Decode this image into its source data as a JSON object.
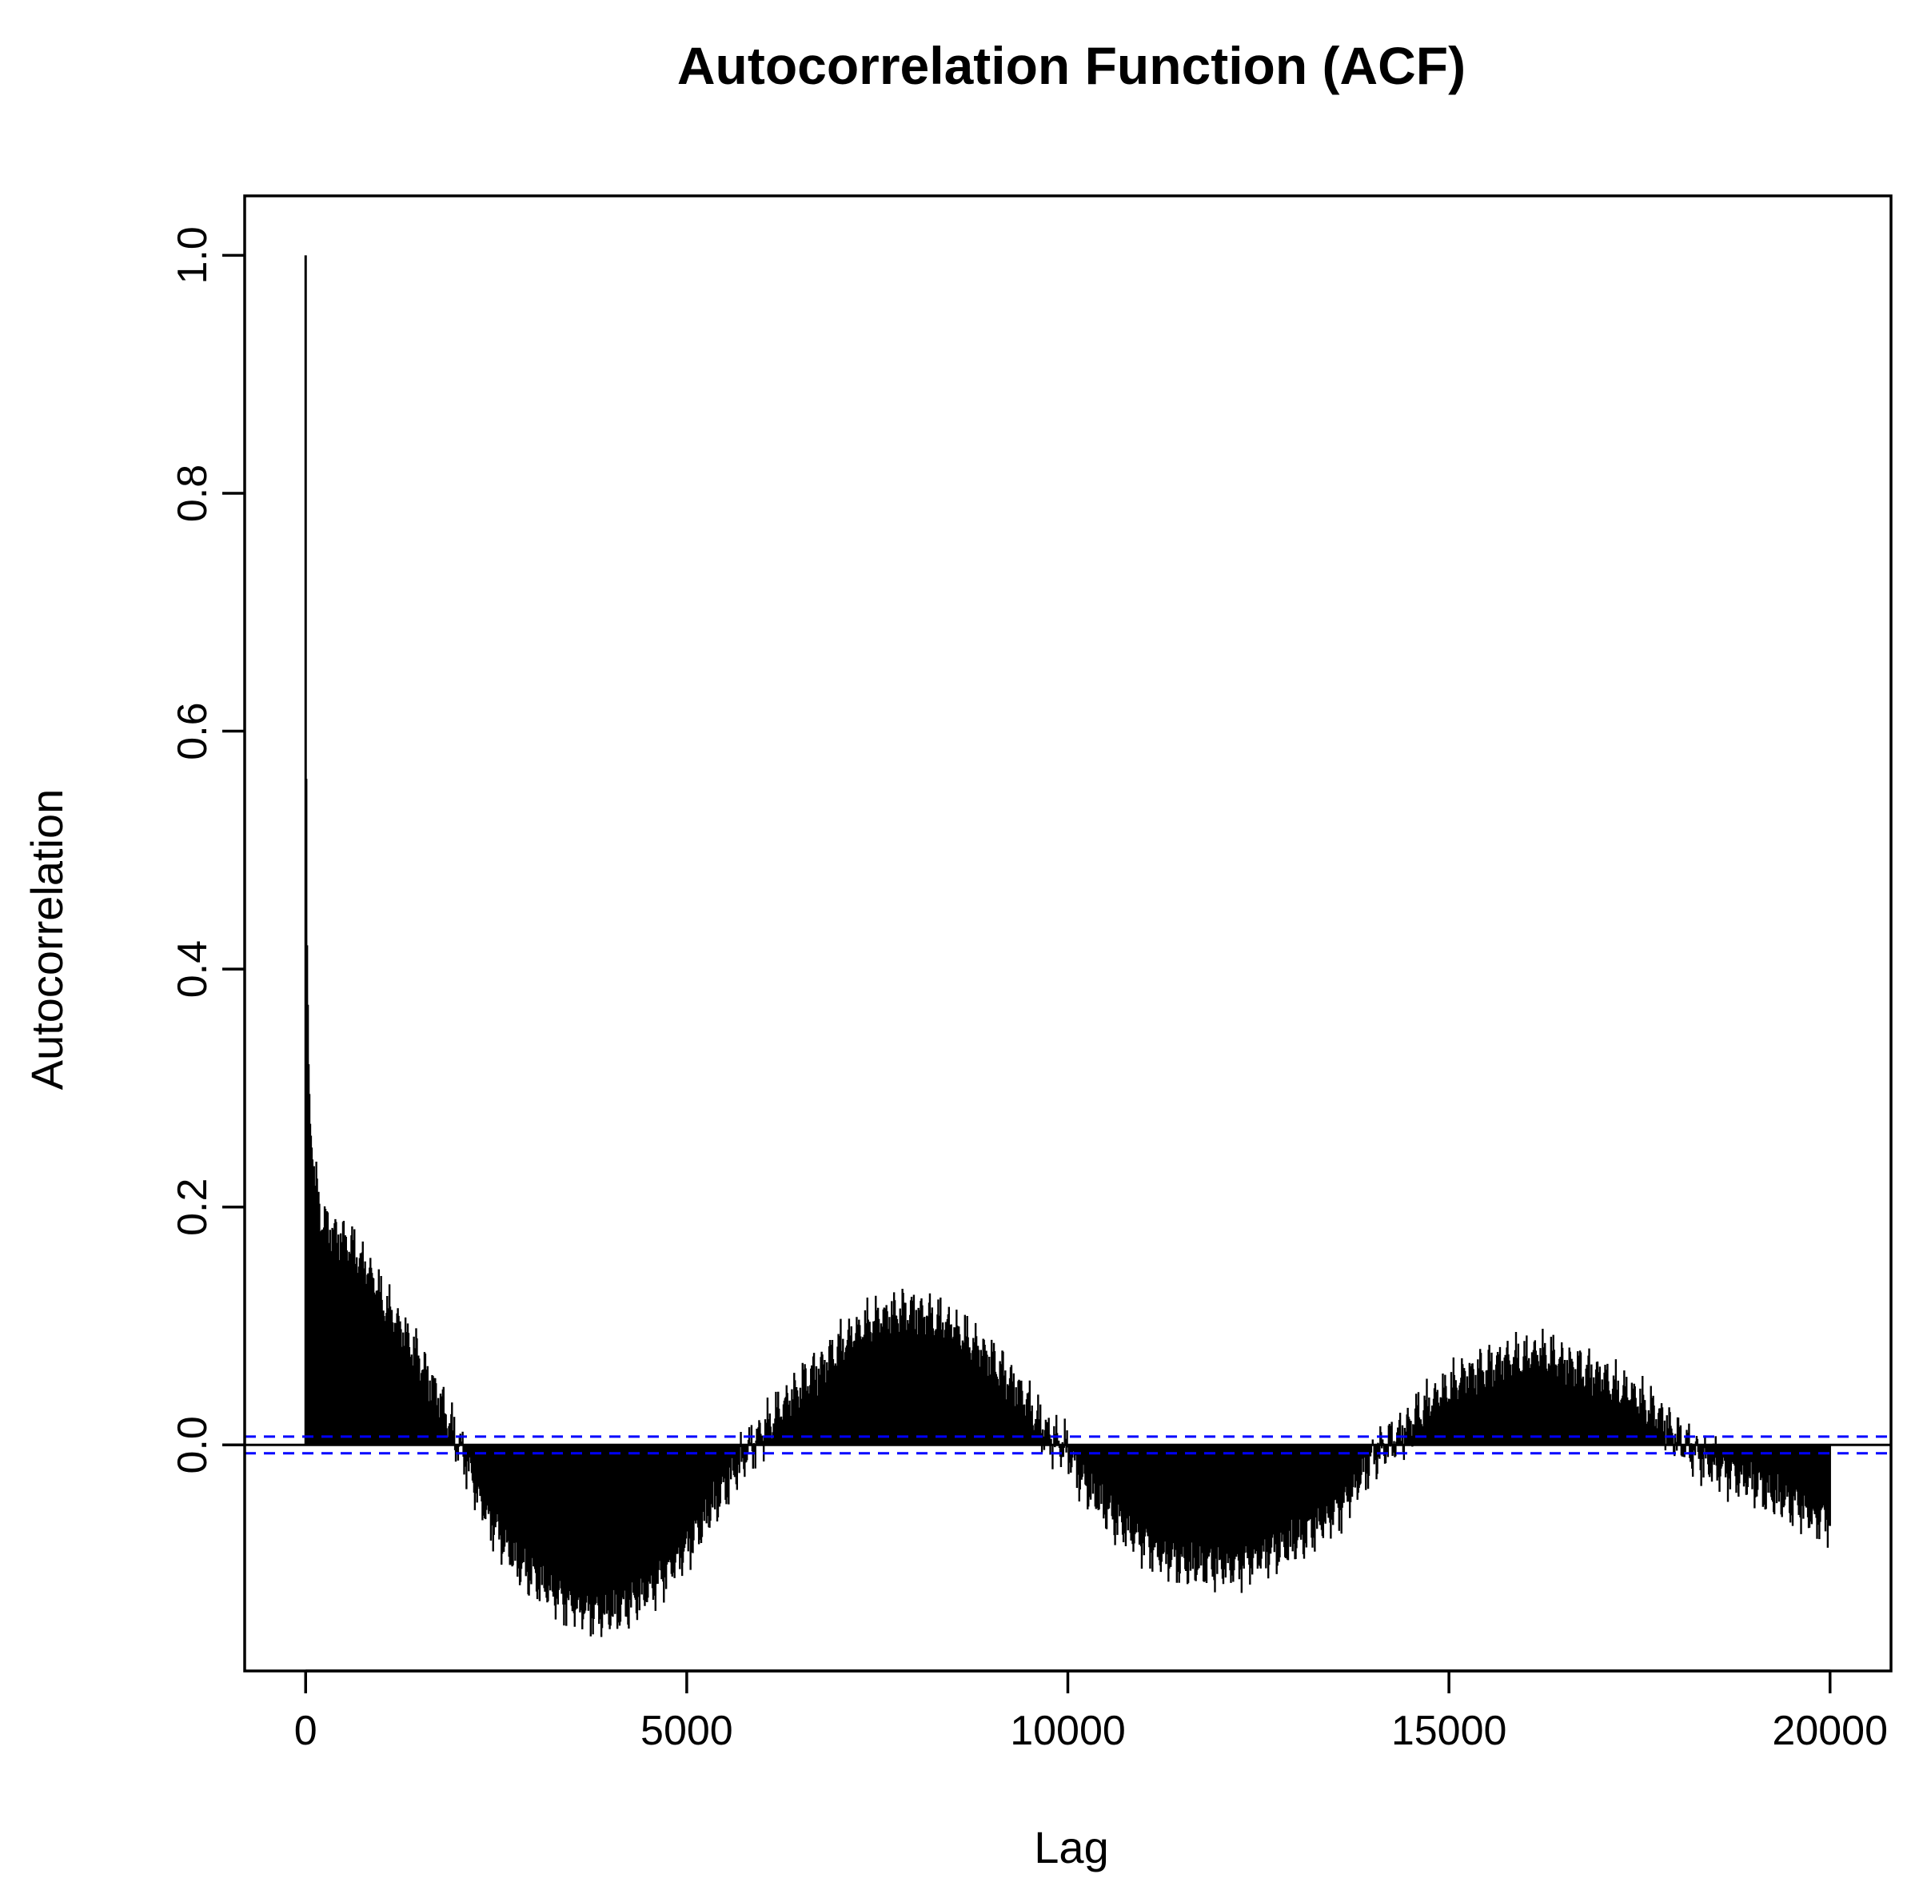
{
  "chart_data": {
    "type": "bar",
    "title": "Autocorrelation Function (ACF)",
    "xlabel": "Lag",
    "ylabel": "Autocorrelation",
    "xlim": [
      -800,
      20800
    ],
    "ylim": [
      -0.19,
      1.05
    ],
    "xticks": [
      0,
      5000,
      10000,
      15000,
      20000
    ],
    "xtick_labels": [
      "0",
      "5000",
      "10000",
      "15000",
      "20000"
    ],
    "yticks": [
      0.0,
      0.2,
      0.4,
      0.6,
      0.8,
      1.0
    ],
    "ytick_labels": [
      "0.0",
      "0.2",
      "0.4",
      "0.6",
      "0.8",
      "1.0"
    ],
    "max_lag": 20000,
    "bar_color": "#000000",
    "zero_line_color": "#000000",
    "confidence_color": "#0000ff",
    "confidence_bounds": [
      0.007,
      -0.007
    ],
    "grid": false,
    "series": [
      {
        "values_at_lags": {
          "x": [
            0,
            5,
            10,
            20,
            40,
            60,
            100,
            150,
            200,
            300,
            400,
            500,
            600,
            700,
            800,
            900,
            1000,
            1100,
            1200,
            1300,
            1400,
            1500,
            1600,
            1700,
            1800,
            1900,
            2000,
            2100,
            2200,
            2300,
            2400,
            2500,
            2600,
            2700,
            2800,
            2900,
            3000,
            3200,
            3400,
            3600,
            3800,
            4000,
            4200,
            4400,
            4600,
            4800,
            5000,
            5200,
            5400,
            5600,
            5800,
            6000,
            6200,
            6400,
            6600,
            6800,
            7000,
            7200,
            7400,
            7600,
            7800,
            8000,
            8200,
            8400,
            8600,
            8800,
            9000,
            9200,
            9400,
            9600,
            9800,
            10000,
            10200,
            10400,
            10600,
            10800,
            11000,
            11200,
            11400,
            11600,
            11800,
            12000,
            12200,
            12400,
            12600,
            12800,
            13000,
            13200,
            13400,
            13600,
            13800,
            14000,
            14200,
            14400,
            14600,
            14800,
            15000,
            15200,
            15400,
            15600,
            15800,
            16000,
            16200,
            16400,
            16600,
            16800,
            17000,
            17200,
            17400,
            17600,
            17800,
            18000,
            18200,
            18400,
            18600,
            18800,
            19000,
            19200,
            19400,
            19600,
            19800,
            20000
          ],
          "y": [
            1.0,
            0.94,
            0.56,
            0.42,
            0.32,
            0.27,
            0.23,
            0.21,
            0.19,
            0.18,
            0.175,
            0.17,
            0.165,
            0.155,
            0.145,
            0.135,
            0.12,
            0.11,
            0.1,
            0.09,
            0.08,
            0.07,
            0.055,
            0.045,
            0.03,
            0.015,
            0.0,
            -0.01,
            -0.03,
            -0.045,
            -0.06,
            -0.07,
            -0.08,
            -0.09,
            -0.1,
            -0.105,
            -0.11,
            -0.12,
            -0.13,
            -0.135,
            -0.14,
            -0.14,
            -0.135,
            -0.125,
            -0.115,
            -0.1,
            -0.085,
            -0.065,
            -0.045,
            -0.025,
            -0.005,
            0.01,
            0.025,
            0.04,
            0.055,
            0.065,
            0.08,
            0.09,
            0.1,
            0.105,
            0.11,
            0.11,
            0.105,
            0.1,
            0.09,
            0.08,
            0.07,
            0.055,
            0.04,
            0.02,
            0.005,
            -0.005,
            -0.03,
            -0.045,
            -0.06,
            -0.07,
            -0.08,
            -0.09,
            -0.095,
            -0.1,
            -0.1,
            -0.1,
            -0.1,
            -0.095,
            -0.09,
            -0.085,
            -0.08,
            -0.07,
            -0.06,
            -0.05,
            -0.03,
            -0.01,
            0.0,
            0.01,
            0.025,
            0.035,
            0.045,
            0.055,
            0.06,
            0.065,
            0.07,
            0.07,
            0.075,
            0.07,
            0.065,
            0.06,
            0.055,
            0.045,
            0.04,
            0.03,
            0.02,
            0.005,
            -0.005,
            -0.015,
            -0.02,
            -0.025,
            -0.03,
            -0.04,
            -0.045,
            -0.05,
            -0.06,
            -0.06
          ]
        }
      }
    ]
  }
}
